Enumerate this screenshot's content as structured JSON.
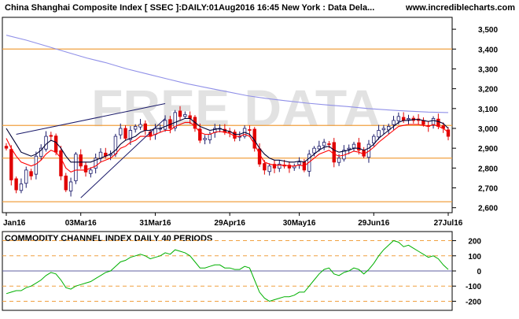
{
  "header": {
    "title": "China Shanghai Composite Index [ SSEC ]:DAILY:01Aug2016 16:45 New York : Data Dela...",
    "site": "www.incrediblecharts.com",
    "watermark": "FREE DATA"
  },
  "chart_data": [
    {
      "type": "candlestick",
      "title": "China Shanghai Composite Index [ SSEC ]:DAILY:01Aug2016 16:45 New York : Data Dela...",
      "x_ticks": [
        "Jan16",
        "03Mar16",
        "31Mar16",
        "29Apr16",
        "30May16",
        "29Jun16",
        "27Jul16"
      ],
      "y_ticks": [
        "2,600",
        "2,700",
        "2,800",
        "2,900",
        "3,000",
        "3,100",
        "3,200",
        "3,300",
        "3,400",
        "3,500"
      ],
      "ylim": [
        2575,
        3560
      ],
      "horizontal_lines": [
        3400,
        3015,
        2850,
        2630
      ],
      "close": [
        2900,
        2740,
        2690,
        2720,
        2790,
        2760,
        2860,
        2900,
        2960,
        2960,
        2880,
        2760,
        2690,
        2730,
        2870,
        2810,
        2780,
        2790,
        2850,
        2880,
        2860,
        2870,
        2960,
        3000,
        2950,
        2990,
        3010,
        3020,
        2990,
        2960,
        3000,
        3000,
        3040,
        3000,
        3080,
        3060,
        3070,
        3050,
        3000,
        2940,
        2950,
        2970,
        3000,
        3000,
        2980,
        2980,
        2950,
        2960,
        3000,
        2990,
        2900,
        2820,
        2790,
        2810,
        2800,
        2820,
        2810,
        2800,
        2810,
        2830,
        2790,
        2870,
        2900,
        2910,
        2930,
        2920,
        2830,
        2850,
        2890,
        2900,
        2920,
        2890,
        2860,
        2920,
        2960,
        2990,
        3000,
        3010,
        3040,
        3060,
        3040,
        3050,
        3040,
        3040,
        3020,
        3010,
        3050,
        3010,
        3000,
        2960
      ],
      "series": [
        {
          "name": "",
          "color": "#000033",
          "values": [
            3000,
            2960,
            2920,
            2880,
            2870,
            2860,
            2870,
            2890,
            2920,
            2940,
            2930,
            2900,
            2860,
            2830,
            2830,
            2830,
            2830,
            2830,
            2840,
            2850,
            2860,
            2870,
            2890,
            2920,
            2940,
            2950,
            2960,
            2980,
            2990,
            2990,
            3000,
            3000,
            3010,
            3020,
            3030,
            3040,
            3050,
            3050,
            3030,
            3010,
            3000,
            2990,
            2995,
            3000,
            2990,
            2985,
            2970,
            2970,
            2980,
            2970,
            2940,
            2900,
            2870,
            2850,
            2840,
            2840,
            2835,
            2830,
            2830,
            2835,
            2830,
            2850,
            2870,
            2890,
            2905,
            2910,
            2890,
            2880,
            2885,
            2890,
            2900,
            2900,
            2890,
            2900,
            2920,
            2950,
            2970,
            2990,
            3010,
            3030,
            3040,
            3040,
            3045,
            3045,
            3040,
            3035,
            3040,
            3035,
            3025,
            3000
          ]
        },
        {
          "name": "",
          "color": "#ff0000",
          "values": [
            2950,
            2900,
            2860,
            2830,
            2820,
            2810,
            2820,
            2840,
            2870,
            2890,
            2880,
            2850,
            2800,
            2780,
            2790,
            2790,
            2790,
            2800,
            2810,
            2830,
            2840,
            2850,
            2870,
            2900,
            2910,
            2930,
            2940,
            2960,
            2960,
            2960,
            2970,
            2980,
            2990,
            2990,
            3010,
            3020,
            3030,
            3030,
            3010,
            2980,
            2970,
            2970,
            2980,
            2985,
            2980,
            2975,
            2960,
            2960,
            2970,
            2960,
            2920,
            2870,
            2830,
            2820,
            2815,
            2815,
            2815,
            2810,
            2810,
            2815,
            2810,
            2830,
            2850,
            2870,
            2880,
            2890,
            2870,
            2860,
            2865,
            2875,
            2885,
            2880,
            2870,
            2885,
            2905,
            2930,
            2950,
            2970,
            2990,
            3010,
            3015,
            3020,
            3020,
            3020,
            3015,
            3010,
            3020,
            3010,
            3000,
            2980
          ]
        },
        {
          "name": "",
          "color": "#9090e8",
          "values": [
            3470,
            3445,
            3415,
            3385,
            3355,
            3330,
            3300,
            3275,
            3250,
            3225,
            3205,
            3185,
            3165,
            3150,
            3138,
            3127,
            3118,
            3110,
            3100,
            3093,
            3087,
            3082,
            3080
          ]
        }
      ],
      "trend_lines": [
        {
          "from": [
            "Jan16+",
            2970
          ],
          "to": [
            "31Mar16+",
            3125
          ]
        },
        {
          "from": [
            "03Mar16",
            2650
          ],
          "to": [
            "31Mar16+",
            3050
          ]
        }
      ]
    },
    {
      "type": "line",
      "title": "COMMODITY CHANNEL INDEX DAILY 40 PERIODS",
      "y_ticks": [
        "200",
        "100",
        "0",
        "-100",
        "-200"
      ],
      "ylim": [
        -260,
        260
      ],
      "horizontal_lines": [
        200,
        100,
        0,
        -100,
        -200
      ],
      "series": [
        {
          "name": "",
          "color": "#00b000",
          "values": [
            -150,
            -140,
            -130,
            -130,
            -110,
            -100,
            -80,
            -60,
            -30,
            -10,
            -20,
            -60,
            -110,
            -120,
            -100,
            -90,
            -80,
            -70,
            -50,
            -30,
            -10,
            0,
            30,
            60,
            70,
            90,
            100,
            110,
            100,
            80,
            90,
            100,
            120,
            110,
            140,
            130,
            120,
            100,
            60,
            20,
            20,
            30,
            40,
            40,
            20,
            20,
            10,
            10,
            30,
            20,
            -60,
            -140,
            -180,
            -200,
            -190,
            -180,
            -170,
            -170,
            -160,
            -140,
            -140,
            -100,
            -60,
            -20,
            10,
            20,
            -20,
            -30,
            -10,
            0,
            20,
            10,
            -20,
            10,
            50,
            100,
            140,
            170,
            200,
            190,
            160,
            170,
            150,
            130,
            110,
            90,
            100,
            80,
            40,
            10
          ]
        }
      ]
    }
  ]
}
